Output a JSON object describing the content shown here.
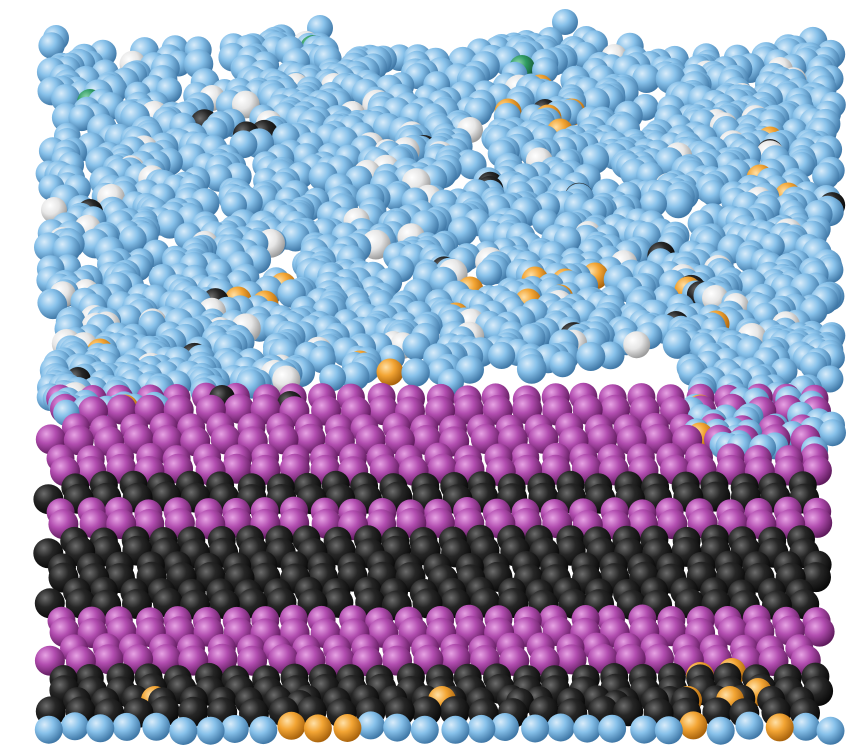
{
  "scene": {
    "background": "#ffffff",
    "atom_colors": {
      "blue": "#87c1ea",
      "magenta": "#b24db0",
      "black": "#1f1f1f",
      "orange": "#f3a534",
      "white": "#ececec",
      "green": "#2f9b62"
    }
  }
}
